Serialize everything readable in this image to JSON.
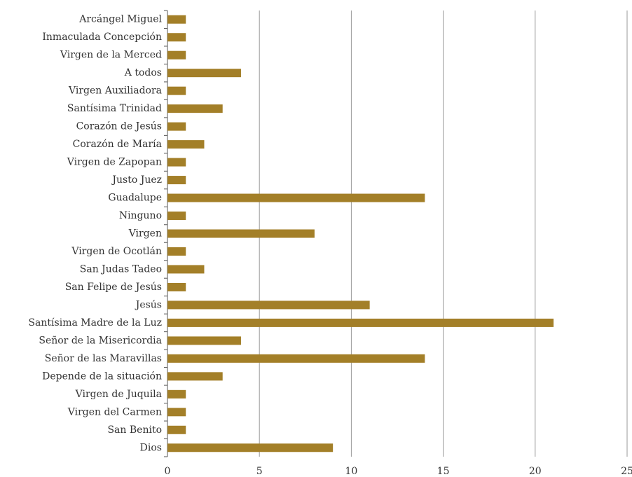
{
  "chart_data": {
    "type": "bar",
    "orientation": "horizontal",
    "categories": [
      "Arcángel Miguel",
      "Inmaculada Concepción",
      "Virgen de la Merced",
      "A todos",
      "Virgen Auxiliadora",
      "Santísima Trinidad",
      "Corazón de Jesús",
      "Corazón de María",
      "Virgen de Zapopan",
      "Justo Juez",
      "Guadalupe",
      "Ninguno",
      "Virgen",
      "Virgen de Ocotlán",
      "San Judas Tadeo",
      "San Felipe de Jesús",
      "Jesús",
      "Santísima Madre de la Luz",
      "Señor de la Misericordia",
      "Señor de las Maravillas",
      "Depende de la situación",
      "Virgen de Juquila",
      "Virgen del Carmen",
      "San Benito",
      "Dios"
    ],
    "values": [
      1,
      1,
      1,
      4,
      1,
      3,
      1,
      2,
      1,
      1,
      14,
      1,
      8,
      1,
      2,
      1,
      11,
      21,
      4,
      14,
      3,
      1,
      1,
      1,
      9
    ],
    "color": "#a37f28",
    "xlim": [
      0,
      25
    ],
    "xticks": [
      0,
      5,
      10,
      15,
      20,
      25
    ],
    "grid": true
  }
}
